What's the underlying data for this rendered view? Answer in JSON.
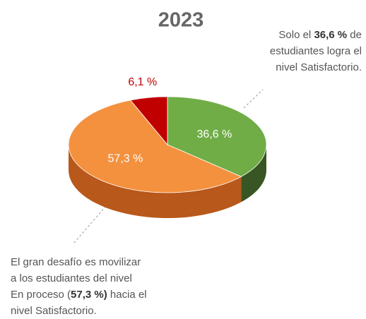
{
  "chart_data": {
    "type": "pie3d",
    "title": "2023",
    "values": [
      36.6,
      57.3,
      6.1
    ],
    "value_labels": [
      "36,6 %",
      "57,3 %",
      "6,1 %"
    ],
    "colors": [
      "#70ad47",
      "#f4913f",
      "#c00000"
    ],
    "side_colors": [
      "#375623",
      "#b8581a",
      "#7a0000"
    ],
    "annotations": [
      {
        "lines": [
          [
            {
              "text": "Solo el "
            },
            {
              "text": "36,6 %",
              "bold": true
            },
            {
              "text": " de"
            }
          ],
          [
            {
              "text": "estudiantes logra el"
            }
          ],
          [
            {
              "text": "nivel Satisfactorio."
            }
          ]
        ]
      },
      {
        "lines": [
          [
            {
              "text": "El gran desafío es movilizar"
            }
          ],
          [
            {
              "text": "a los estudiantes del nivel"
            }
          ],
          [
            {
              "text": "En proceso ("
            },
            {
              "text": "57,3 %)",
              "bold": true
            },
            {
              "text": " hacia el"
            }
          ],
          [
            {
              "text": "nivel Satisfactorio."
            }
          ]
        ]
      }
    ]
  }
}
